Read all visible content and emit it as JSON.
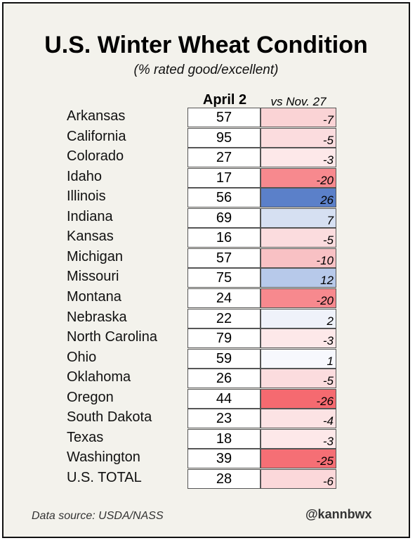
{
  "title": "U.S. Winter Wheat Condition",
  "subtitle": "(% rated good/excellent)",
  "columns": {
    "current": "April 2",
    "change": "vs Nov. 27"
  },
  "rows": [
    {
      "state": "Arkansas",
      "value": "57",
      "change": "-7",
      "color": "#fad3d5"
    },
    {
      "state": "California",
      "value": "95",
      "change": "-5",
      "color": "#fbdcde"
    },
    {
      "state": "Colorado",
      "value": "27",
      "change": "-3",
      "color": "#fde8e9"
    },
    {
      "state": "Idaho",
      "value": "17",
      "change": "-20",
      "color": "#f7898e"
    },
    {
      "state": "Illinois",
      "value": "56",
      "change": "26",
      "color": "#5b80c9"
    },
    {
      "state": "Indiana",
      "value": "69",
      "change": "7",
      "color": "#d6e0f2"
    },
    {
      "state": "Kansas",
      "value": "16",
      "change": "-5",
      "color": "#fbdcde"
    },
    {
      "state": "Michigan",
      "value": "57",
      "change": "-10",
      "color": "#f8c1c4"
    },
    {
      "state": "Missouri",
      "value": "75",
      "change": "12",
      "color": "#b7c9ea"
    },
    {
      "state": "Montana",
      "value": "24",
      "change": "-20",
      "color": "#f7898e"
    },
    {
      "state": "Nebraska",
      "value": "22",
      "change": "2",
      "color": "#eff2fa"
    },
    {
      "state": "North Carolina",
      "value": "79",
      "change": "-3",
      "color": "#fde8e9"
    },
    {
      "state": "Ohio",
      "value": "59",
      "change": "1",
      "color": "#f7f8fd"
    },
    {
      "state": "Oklahoma",
      "value": "26",
      "change": "-5",
      "color": "#fbdcde"
    },
    {
      "state": "Oregon",
      "value": "44",
      "change": "-26",
      "color": "#f56a70"
    },
    {
      "state": "South Dakota",
      "value": "23",
      "change": "-4",
      "color": "#fce3e4"
    },
    {
      "state": "Texas",
      "value": "18",
      "change": "-3",
      "color": "#fde8e9"
    },
    {
      "state": "Washington",
      "value": "39",
      "change": "-25",
      "color": "#f56f75"
    },
    {
      "state": "U.S. TOTAL",
      "value": "28",
      "change": "-6",
      "color": "#fbd8da"
    }
  ],
  "footer": {
    "source": "Data source: USDA/NASS",
    "handle": "@kannbwx"
  }
}
